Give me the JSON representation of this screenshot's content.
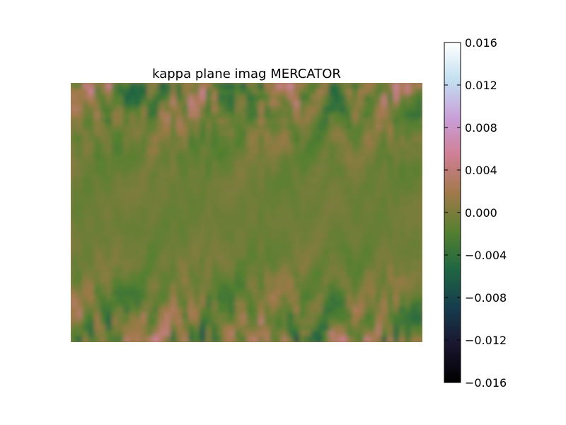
{
  "chart_data": {
    "type": "heatmap",
    "title": "kappa plane imag MERCATOR",
    "xlabel": "",
    "ylabel": "",
    "axes_visible": false,
    "colormap": "cubehelix",
    "colorbar": {
      "orientation": "vertical",
      "placement": "right",
      "range": [
        -0.016,
        0.016
      ],
      "ticks": [
        0.016,
        0.012,
        0.008,
        0.004,
        0.0,
        -0.004,
        -0.008,
        -0.012,
        -0.016
      ],
      "tick_labels": [
        "0.016",
        "0.012",
        "0.008",
        "0.004",
        "0.000",
        "−0.004",
        "−0.008",
        "−0.012",
        "−0.016"
      ],
      "colors": [
        "#000000",
        "#1a1530",
        "#163d4e",
        "#1f6642",
        "#55802f",
        "#a07949",
        "#d07e93",
        "#c99fd9",
        "#c2dff0",
        "#ffffff"
      ]
    },
    "grid": false
  }
}
